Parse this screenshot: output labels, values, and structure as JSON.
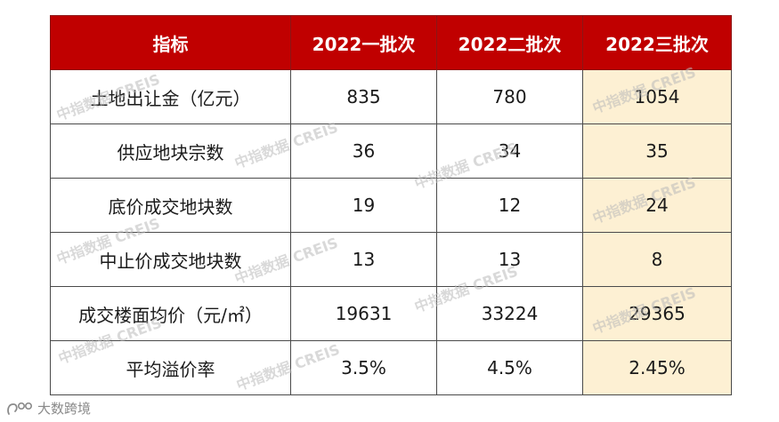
{
  "table": {
    "headers": [
      "指标",
      "2022一批次",
      "2022二批次",
      "2022三批次"
    ],
    "rows": [
      {
        "label": "土地出让金（亿元）",
        "values": [
          "835",
          "780",
          "1054"
        ]
      },
      {
        "label": "供应地块宗数",
        "values": [
          "36",
          "34",
          "35"
        ]
      },
      {
        "label": "底价成交地块数",
        "values": [
          "19",
          "12",
          "24"
        ]
      },
      {
        "label": "中止价成交地块数",
        "values": [
          "13",
          "13",
          "8"
        ]
      },
      {
        "label": "成交楼面均价（元/㎡）",
        "values": [
          "19631",
          "33224",
          "29365"
        ]
      },
      {
        "label": "平均溢价率",
        "values": [
          "3.5%",
          "4.5%",
          "2.45%"
        ]
      }
    ]
  },
  "watermark": {
    "text": "中指数据 CREIS"
  },
  "footer": {
    "brand": "大数跨境"
  },
  "colors": {
    "header_bg": "#c00000",
    "highlight_bg": "#fdf0d3"
  }
}
